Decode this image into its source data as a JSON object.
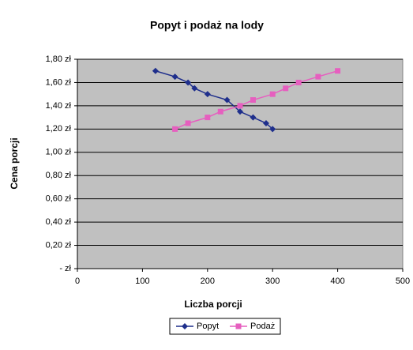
{
  "chart_data": {
    "type": "scatter",
    "title": "Popyt i podaż na lody",
    "xlabel": "Liczba porcji",
    "ylabel": "Cena porcji",
    "xlim": [
      0,
      500
    ],
    "xticks": [
      0,
      100,
      200,
      300,
      400,
      500
    ],
    "ylim": [
      0,
      1.8
    ],
    "yticks": [
      {
        "value": 0,
        "label": "-   zł"
      },
      {
        "value": 0.2,
        "label": "0,20 zł"
      },
      {
        "value": 0.4,
        "label": "0,40 zł"
      },
      {
        "value": 0.6,
        "label": "0,60 zł"
      },
      {
        "value": 0.8,
        "label": "0,80 zł"
      },
      {
        "value": 1.0,
        "label": "1,00 zł"
      },
      {
        "value": 1.2,
        "label": "1,20 zł"
      },
      {
        "value": 1.4,
        "label": "1,40 zł"
      },
      {
        "value": 1.6,
        "label": "1,60 zł"
      },
      {
        "value": 1.8,
        "label": "1,80 zł"
      }
    ],
    "grid": true,
    "legend": "bottom",
    "series": [
      {
        "name": "Popyt",
        "color": "#1f2f8c",
        "marker": "diamond",
        "x": [
          120,
          150,
          170,
          180,
          200,
          230,
          250,
          270,
          290,
          300
        ],
        "values": [
          1.7,
          1.65,
          1.6,
          1.55,
          1.5,
          1.45,
          1.35,
          1.3,
          1.25,
          1.2
        ]
      },
      {
        "name": "Podaż",
        "color": "#e65fbf",
        "marker": "square",
        "x": [
          150,
          170,
          200,
          220,
          250,
          270,
          300,
          320,
          340,
          370,
          400
        ],
        "values": [
          1.2,
          1.25,
          1.3,
          1.35,
          1.4,
          1.45,
          1.5,
          1.55,
          1.6,
          1.65,
          1.7
        ]
      }
    ]
  }
}
